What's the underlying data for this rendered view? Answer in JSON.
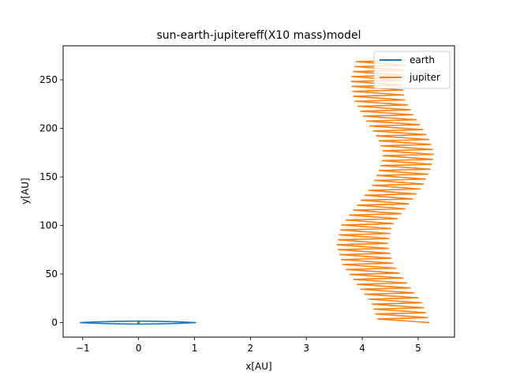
{
  "chart_data": {
    "type": "line",
    "title": "sun-earth-jupitereff(X10 mass)model",
    "xlabel": "x[AU]",
    "ylabel": "y[AU]",
    "xlim": [
      -1.35,
      5.65
    ],
    "ylim": [
      -15,
      285
    ],
    "xticks": [
      -1,
      0,
      1,
      2,
      3,
      4,
      5
    ],
    "yticks": [
      0,
      50,
      100,
      150,
      200,
      250
    ],
    "xtick_labels": [
      "−1",
      "0",
      "1",
      "2",
      "3",
      "4",
      "5"
    ],
    "ytick_labels": [
      "0",
      "50",
      "100",
      "150",
      "200",
      "250"
    ],
    "grid": false,
    "legend": "top-right",
    "series": [
      {
        "name": "earth",
        "color": "#1f77b4",
        "description_values": {
          "x_range": [
            -1.05,
            1.02
          ],
          "y_range": [
            -1.5,
            1.5
          ]
        },
        "x": [
          -1.05,
          -0.7,
          -0.35,
          0.0,
          0.35,
          0.7,
          1.02,
          0.7,
          0.35,
          0.0,
          -0.35,
          -0.7,
          -1.05
        ],
        "y": [
          0.0,
          -0.8,
          -1.3,
          -1.5,
          -1.3,
          -0.8,
          0.0,
          0.8,
          1.3,
          1.5,
          1.3,
          0.8,
          0.0
        ]
      },
      {
        "name": "jupiter",
        "color": "#ff7f0e",
        "cycles": 53,
        "y_end": 270,
        "x_amplitude": 0.45,
        "centerline": {
          "y": [
            0,
            20,
            40,
            60,
            80,
            100,
            120,
            140,
            160,
            175,
            190,
            210,
            230,
            250,
            270
          ],
          "x": [
            4.75,
            4.62,
            4.35,
            4.1,
            4.0,
            4.08,
            4.35,
            4.62,
            4.78,
            4.83,
            4.73,
            4.5,
            4.3,
            4.25,
            4.35
          ]
        }
      }
    ],
    "sun_marker": {
      "x": 0.0,
      "y": 0.0,
      "color": "#2ca02c"
    }
  }
}
